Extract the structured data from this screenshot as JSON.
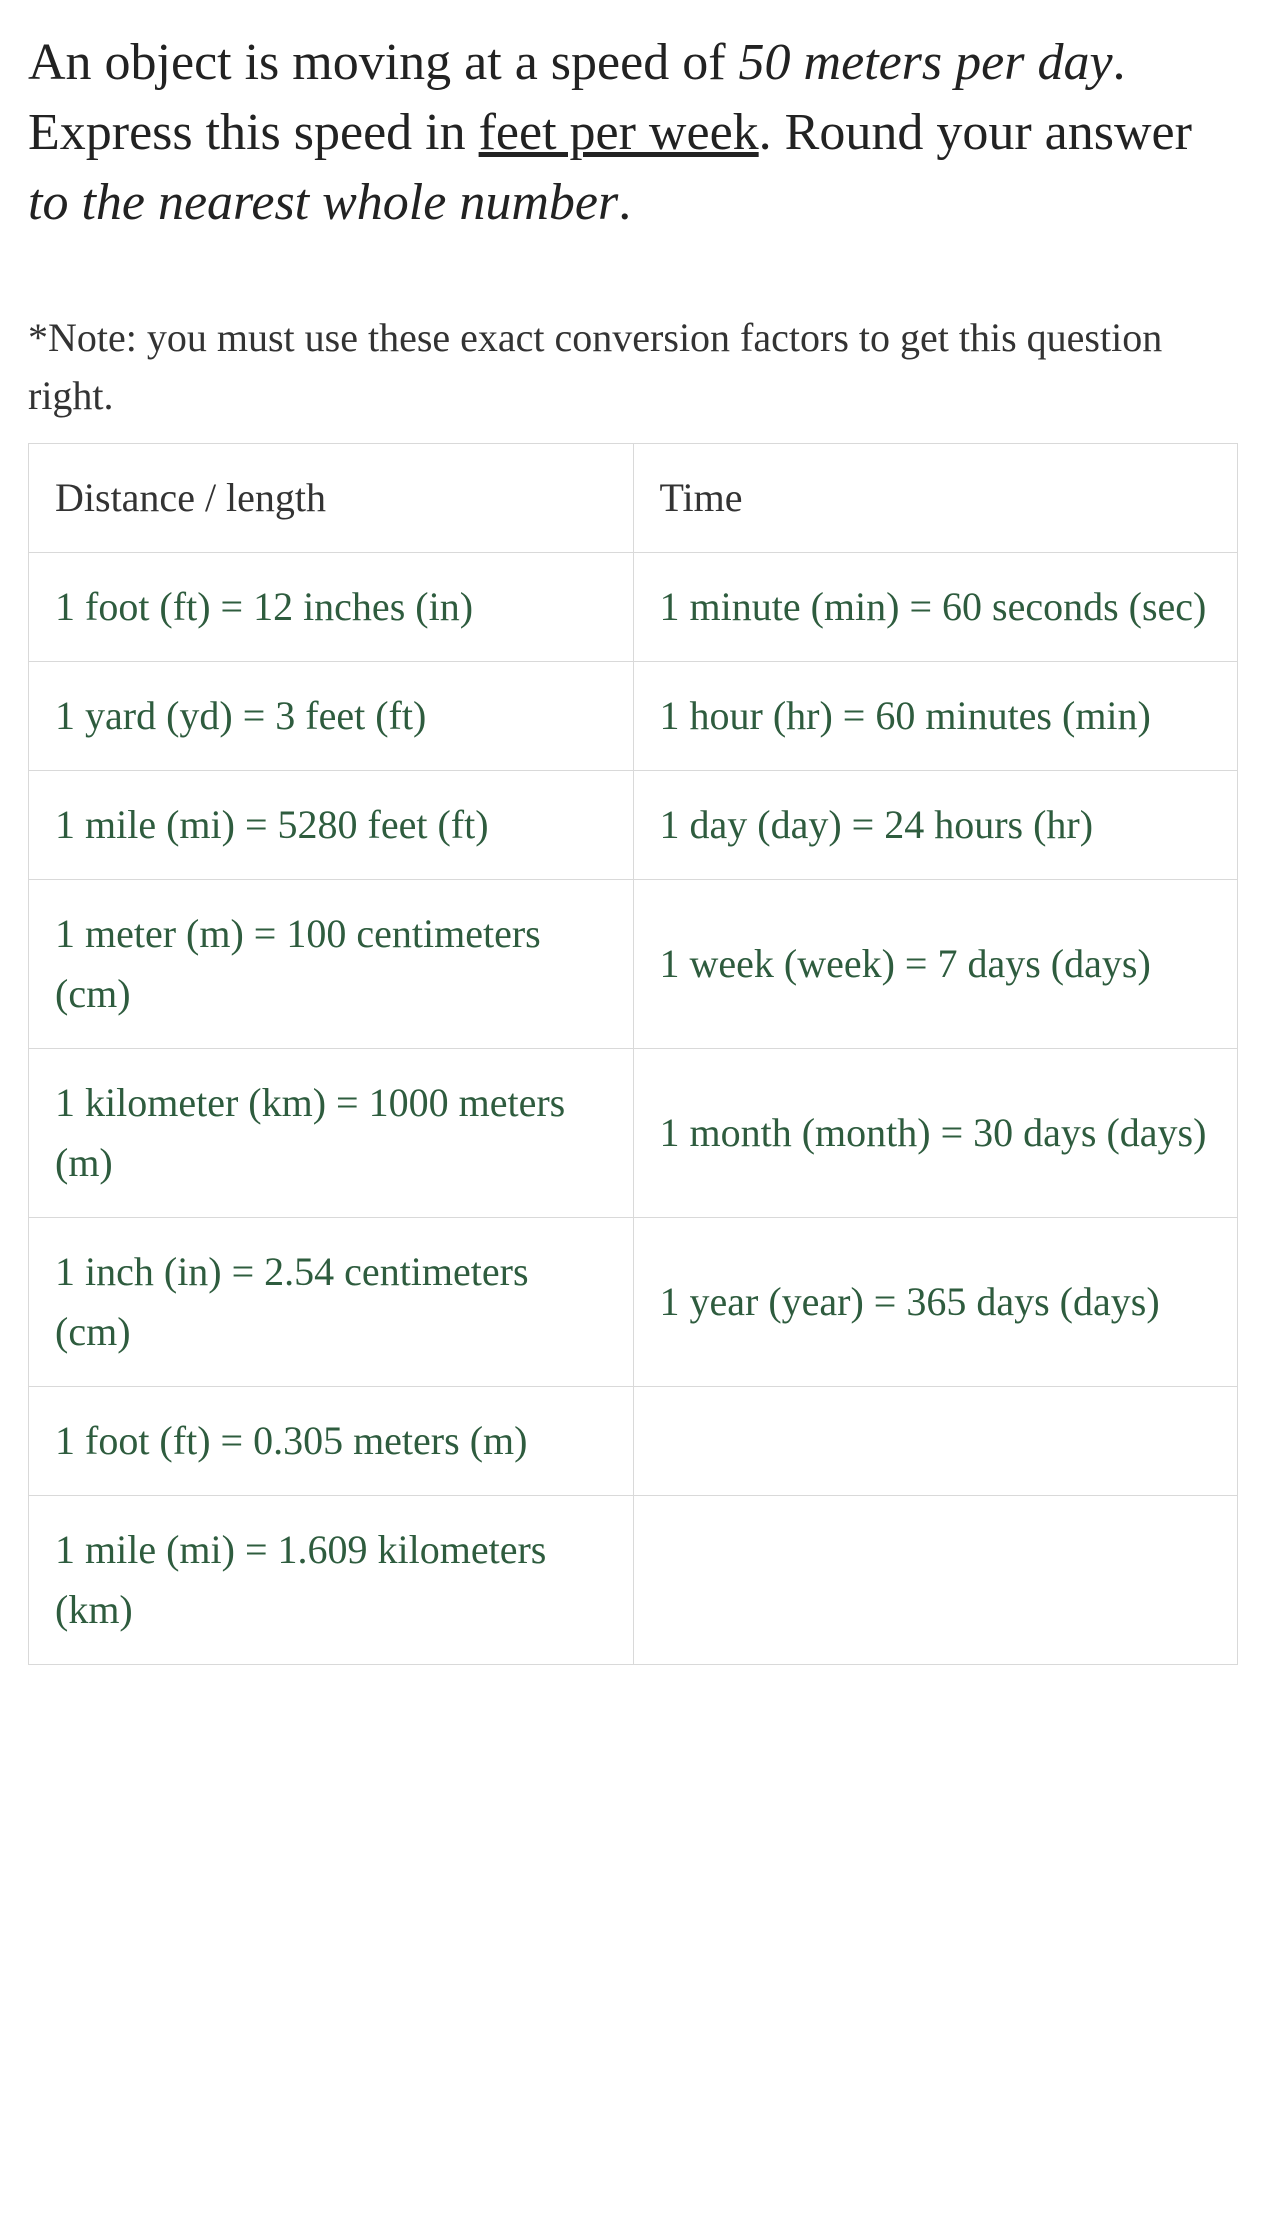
{
  "question": {
    "pre1": "An object is moving at a speed of ",
    "speed": "50 meters per day",
    "mid1": ". Express this speed in ",
    "target_unit": "feet per week",
    "mid2": ". Round your answer ",
    "round": "to the nearest whole number",
    "end": "."
  },
  "note": "*Note: you must use these exact conversion factors to get this question right.",
  "table": {
    "headers": {
      "left": "Distance / length",
      "right": "Time"
    },
    "rows": [
      {
        "left": "1 foot (ft) = 12 inches (in)",
        "right": "1 minute (min) = 60 seconds (sec)"
      },
      {
        "left": "1 yard (yd) = 3 feet (ft)",
        "right": "1 hour (hr) = 60 minutes (min)"
      },
      {
        "left": "1 mile (mi) = 5280 feet (ft)",
        "right": "1 day (day) = 24 hours (hr)"
      },
      {
        "left": "1 meter (m) = 100 centimeters (cm)",
        "right": "1 week (week) = 7 days (days)"
      },
      {
        "left": "1 kilometer (km) = 1000 meters (m)",
        "right": "1 month (month) = 30 days (days)"
      },
      {
        "left": "1 inch (in) = 2.54 centimeters (cm)",
        "right": "1 year (year) = 365 days (days)"
      },
      {
        "left": "1 foot (ft) = 0.305 meters (m)",
        "right": ""
      },
      {
        "left": "1 mile (mi) = 1.609 kilometers (km)",
        "right": ""
      }
    ]
  }
}
